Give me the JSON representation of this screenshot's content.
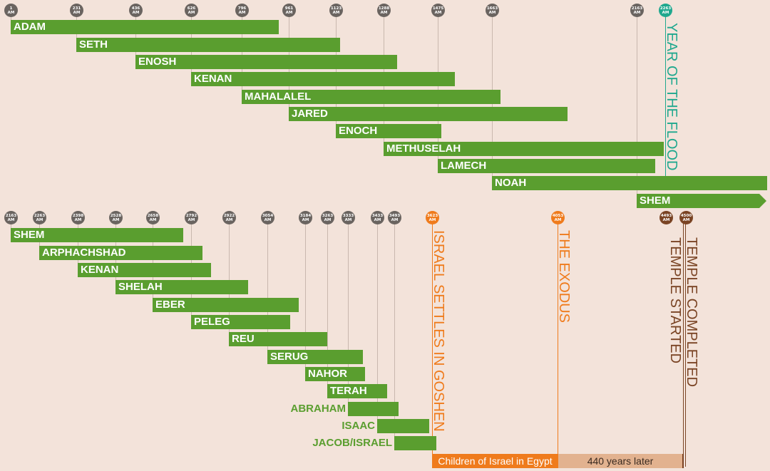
{
  "colors": {
    "background": "#f3e3da",
    "bar": "#5a9e2f",
    "marker": "#6a6460",
    "flood": "#1fa88e",
    "settle": "#ef7b1c",
    "exodus": "#ef7b1c",
    "temple": "#7a4424",
    "band_egypt": "#ef7b1c",
    "band_later": "#e2b28f"
  },
  "top_markers": [
    {
      "year": "1",
      "unit": "AM"
    },
    {
      "year": "231",
      "unit": "AM"
    },
    {
      "year": "436",
      "unit": "AM"
    },
    {
      "year": "626",
      "unit": "AM"
    },
    {
      "year": "796",
      "unit": "AM"
    },
    {
      "year": "961",
      "unit": "AM"
    },
    {
      "year": "1123",
      "unit": "AM"
    },
    {
      "year": "1288",
      "unit": "AM"
    },
    {
      "year": "1475",
      "unit": "AM"
    },
    {
      "year": "1663",
      "unit": "AM"
    },
    {
      "year": "2163",
      "unit": "AM"
    },
    {
      "year": "2263",
      "unit": "AM"
    }
  ],
  "top_people": [
    {
      "name": "ADAM"
    },
    {
      "name": "SETH"
    },
    {
      "name": "ENOSH"
    },
    {
      "name": "KENAN"
    },
    {
      "name": "MAHALALEL"
    },
    {
      "name": "JARED"
    },
    {
      "name": "ENOCH"
    },
    {
      "name": "METHUSELAH"
    },
    {
      "name": "LAMECH"
    },
    {
      "name": "NOAH"
    },
    {
      "name": "SHEM"
    }
  ],
  "flood_label": "YEAR OF THE FLOOD",
  "bottom_markers": [
    {
      "year": "2163",
      "unit": "AM"
    },
    {
      "year": "2263",
      "unit": "AM"
    },
    {
      "year": "2398",
      "unit": "AM"
    },
    {
      "year": "2528",
      "unit": "AM"
    },
    {
      "year": "2658",
      "unit": "AM"
    },
    {
      "year": "2792",
      "unit": "AM"
    },
    {
      "year": "2922",
      "unit": "AM"
    },
    {
      "year": "3054",
      "unit": "AM"
    },
    {
      "year": "3184",
      "unit": "AM"
    },
    {
      "year": "3263",
      "unit": "AM"
    },
    {
      "year": "3333",
      "unit": "AM"
    },
    {
      "year": "3433",
      "unit": "AM"
    },
    {
      "year": "3493",
      "unit": "AM"
    },
    {
      "year": "3623",
      "unit": "AM"
    },
    {
      "year": "4053",
      "unit": "AM"
    },
    {
      "year": "4493",
      "unit": "AM"
    },
    {
      "year": "4500",
      "unit": "AM"
    }
  ],
  "bottom_people": [
    {
      "name": "SHEM"
    },
    {
      "name": "ARPHACHSHAD"
    },
    {
      "name": "KENAN"
    },
    {
      "name": "SHELAH"
    },
    {
      "name": "EBER"
    },
    {
      "name": "PELEG"
    },
    {
      "name": "REU"
    },
    {
      "name": "SERUG"
    },
    {
      "name": "NAHOR"
    },
    {
      "name": "TERAH"
    },
    {
      "name": "ABRAHAM"
    },
    {
      "name": "ISAAC"
    },
    {
      "name": "JACOB/ISRAEL"
    }
  ],
  "events": {
    "settle": "ISRAEL SETTLES IN GOSHEN",
    "exodus": "THE EXODUS",
    "temple_started": "TEMPLE STARTED",
    "temple_completed": "TEMPLE COMPLETED"
  },
  "bands": {
    "egypt": "Children of Israel in Egypt",
    "later": "440 years later"
  }
}
